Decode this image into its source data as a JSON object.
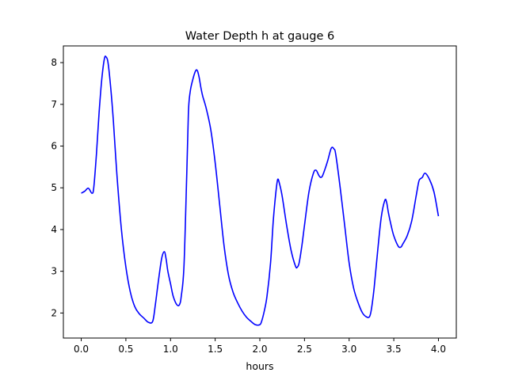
{
  "chart_data": {
    "type": "line",
    "title": "Water Depth h at gauge 6",
    "xlabel": "hours",
    "ylabel": "",
    "xlim": [
      -0.2,
      4.2
    ],
    "ylim": [
      1.4,
      8.4
    ],
    "xticks": [
      0.0,
      0.5,
      1.0,
      1.5,
      2.0,
      2.5,
      3.0,
      3.5,
      4.0
    ],
    "xtick_labels": [
      "0.0",
      "0.5",
      "1.0",
      "1.5",
      "2.0",
      "2.5",
      "3.0",
      "3.5",
      "4.0"
    ],
    "yticks": [
      2,
      3,
      4,
      5,
      6,
      7,
      8
    ],
    "ytick_labels": [
      "2",
      "3",
      "4",
      "5",
      "6",
      "7",
      "8"
    ],
    "grid": false,
    "series": [
      {
        "color": "#0000ff",
        "x": [
          0.0,
          0.04,
          0.08,
          0.12,
          0.14,
          0.17,
          0.2,
          0.23,
          0.26,
          0.28,
          0.3,
          0.33,
          0.36,
          0.4,
          0.45,
          0.5,
          0.55,
          0.6,
          0.65,
          0.7,
          0.75,
          0.8,
          0.83,
          0.86,
          0.9,
          0.93,
          0.95,
          0.97,
          1.0,
          1.03,
          1.07,
          1.1,
          1.12,
          1.15,
          1.18,
          1.2,
          1.22,
          1.25,
          1.28,
          1.3,
          1.32,
          1.34,
          1.36,
          1.4,
          1.45,
          1.5,
          1.55,
          1.6,
          1.65,
          1.7,
          1.75,
          1.8,
          1.85,
          1.9,
          1.95,
          2.0,
          2.02,
          2.05,
          2.08,
          2.12,
          2.15,
          2.18,
          2.2,
          2.22,
          2.25,
          2.3,
          2.35,
          2.4,
          2.42,
          2.44,
          2.47,
          2.5,
          2.55,
          2.6,
          2.63,
          2.66,
          2.68,
          2.7,
          2.73,
          2.76,
          2.8,
          2.83,
          2.85,
          2.9,
          2.95,
          3.0,
          3.05,
          3.1,
          3.15,
          3.2,
          3.23,
          3.25,
          3.28,
          3.32,
          3.36,
          3.4,
          3.42,
          3.44,
          3.47,
          3.5,
          3.55,
          3.58,
          3.6,
          3.65,
          3.7,
          3.75,
          3.78,
          3.8,
          3.82,
          3.85,
          3.9,
          3.95,
          4.0
        ],
        "y": [
          4.87,
          4.92,
          4.99,
          4.87,
          5.0,
          5.8,
          6.8,
          7.6,
          8.1,
          8.13,
          8.0,
          7.4,
          6.6,
          5.3,
          4.0,
          3.1,
          2.5,
          2.15,
          1.98,
          1.88,
          1.78,
          1.8,
          2.2,
          2.7,
          3.3,
          3.47,
          3.3,
          3.0,
          2.7,
          2.4,
          2.2,
          2.2,
          2.4,
          3.1,
          5.2,
          6.8,
          7.3,
          7.6,
          7.8,
          7.81,
          7.65,
          7.4,
          7.2,
          6.9,
          6.4,
          5.6,
          4.6,
          3.6,
          2.9,
          2.5,
          2.25,
          2.05,
          1.9,
          1.8,
          1.72,
          1.72,
          1.8,
          2.05,
          2.4,
          3.2,
          4.2,
          4.9,
          5.2,
          5.1,
          4.8,
          4.1,
          3.5,
          3.12,
          3.1,
          3.2,
          3.6,
          4.1,
          4.9,
          5.35,
          5.42,
          5.3,
          5.25,
          5.28,
          5.45,
          5.65,
          5.95,
          5.93,
          5.8,
          5.0,
          4.1,
          3.2,
          2.6,
          2.25,
          2.0,
          1.9,
          1.92,
          2.1,
          2.6,
          3.5,
          4.3,
          4.7,
          4.65,
          4.4,
          4.1,
          3.85,
          3.6,
          3.58,
          3.65,
          3.85,
          4.2,
          4.8,
          5.15,
          5.22,
          5.25,
          5.35,
          5.2,
          4.9,
          4.32
        ]
      }
    ]
  }
}
